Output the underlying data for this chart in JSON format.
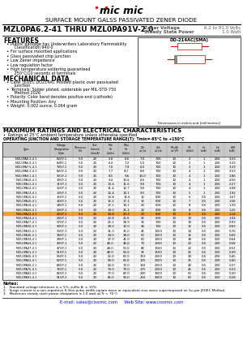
{
  "title": "SURFACE MOUNT GALSS PASSIVATED ZENER DIODE",
  "part_range": "MZL0PA6.2-41 THRU MZL0PA91V-2.0",
  "zener_voltage_label": "Zener Voltage",
  "zener_voltage_value": "6.2 to 91.0 Volts",
  "power_label": "Steady State Power",
  "power_value": "1.0 Watt",
  "package": "DO-214AC(SMA)",
  "bg_color": "#ffffff",
  "features_title": "FEATURES",
  "features": [
    "Plastic package has Underwriters Laboratory Flammability\n   Classification 94V-0",
    "For surface mounted applications",
    "Glass passivated chip junction",
    "Low Zener impedance",
    "Low regulation factor",
    "High temperature soldering guaranteed\n   250°C/10 seconds at terminals"
  ],
  "mech_title": "MECHANICAL DATA",
  "mech": [
    "Case: JEDEC DO214AC molded plastic over passivated\n   junction",
    "Terminals: Solder plated, solderable per MIL-STD-750\n   Method 2026",
    "Polarity: Color band denotes positive end (cathode)",
    "Mounting Position: Any",
    "Weight: 0.002 ounce, 0.064 gram"
  ],
  "ratings_title": "MAXIMUM RATINGS AND ELECTRICAL CHARACTERISTICS",
  "ratings_note": "•  Ratings at 25°C ambient temperature unless otherwise specified",
  "temp_range": "OPERATING JUNCTION AND STORAGE TEMPERATURE RANGE(T): Tmin=-65°C to +150°C",
  "col_headers": [
    "Type",
    "Voltage\nDesignation\nCode",
    "Tolerance\n(%)",
    "Test\nCurrent\nIzt(mA)",
    "Min\nVz\n(Volts)",
    "Max\nVz\n(Volts)",
    "Zzt\nat Izt",
    "Zzk\nat Izk",
    "IR(uA)\nat VR",
    "VR\n(Volts)",
    "Izt\n(mA)",
    "Izk\n(mA)",
    "ISM\n(mA)"
  ],
  "col_group_headers": [
    [
      "",
      0,
      4
    ],
    [
      "Zener Voltage",
      4,
      2
    ],
    [
      "Zener Impedance",
      6,
      2
    ],
    [
      "Leakage\nCurrent",
      8,
      2
    ],
    [
      "",
      10,
      3
    ]
  ],
  "table_data": [
    [
      "MZL0PA6.2-4 1",
      "6V2Y-1",
      "5.0",
      "20",
      "5.8",
      "6.6",
      "7.0",
      "700",
      "10",
      "2",
      "1",
      "200",
      "3.33"
    ],
    [
      "MZL0PA6.8-4 1",
      "6V8Y-1",
      "5.0",
      "20",
      "6.4",
      "7.2",
      "5.0",
      "700",
      "10",
      "2",
      "1",
      "200",
      "3.33"
    ],
    [
      "MZL0PA7.5-4 1",
      "7V5Y-1",
      "5.0",
      "20",
      "7.0",
      "7.9",
      "6.0",
      "700",
      "10",
      "2",
      "1",
      "200",
      "3.33"
    ],
    [
      "MZL0PA8.2-4 1",
      "8V2Y-1",
      "5.0",
      "20",
      "7.7",
      "8.7",
      "8.0",
      "700",
      "10",
      "4",
      "1",
      "200",
      "3.33"
    ],
    [
      "MZL0PA9.1-4 1",
      "9V1Y-1",
      "5.0",
      "20",
      "8.5",
      "9.6",
      "10.0",
      "700",
      "10",
      "4",
      "1",
      "200",
      "2.86"
    ],
    [
      "MZL0PA10-4 1",
      "10VY-1",
      "5.0",
      "20",
      "9.4",
      "10.6",
      "8.5",
      "700",
      "10",
      "4",
      "1",
      "200",
      "2.50"
    ],
    [
      "MZL0PA11-4 1",
      "11VY-1",
      "5.0",
      "20",
      "10.4",
      "11.6",
      "9.0",
      "700",
      "10",
      "4",
      "1",
      "200",
      "2.27"
    ],
    [
      "MZL0PA12-4 1",
      "12VY-1",
      "5.0",
      "20",
      "11.4",
      "12.7",
      "9.0",
      "700",
      "10",
      "4",
      "1",
      "200",
      "2.08"
    ],
    [
      "MZL0PA13-4 1",
      "13VY-1",
      "5.0",
      "20",
      "12.4",
      "14.1",
      "9.5",
      "700",
      "10",
      "5",
      "1",
      "200",
      "1.92"
    ],
    [
      "MZL0PA15-4 1",
      "15VY-1",
      "5.0",
      "20",
      "13.8",
      "15.6",
      "12",
      "600",
      "10",
      "6",
      "0.5",
      "200",
      "1.67"
    ],
    [
      "MZL0PA16-4 1",
      "16VY-1",
      "5.0",
      "20",
      "15.3",
      "17.1",
      "15",
      "600",
      "10",
      "7",
      "0.5",
      "200",
      "1.56"
    ],
    [
      "MZL0PA18-4 1",
      "18VY-1",
      "5.0",
      "20",
      "17.1",
      "19.1",
      "20",
      "600",
      "10",
      "8",
      "0.5",
      "200",
      "1.39"
    ],
    [
      "MZL0PA20-4 1",
      "20VY-1",
      "5.0",
      "20",
      "19.0",
      "21.2",
      "22",
      "600",
      "10",
      "8",
      "0.5",
      "200",
      "1.25"
    ],
    [
      "MZL0PA22-4 1",
      "22VY-1",
      "5.0",
      "20",
      "20.8",
      "23.3",
      "23",
      "600",
      "10",
      "8",
      "0.5",
      "200",
      "1.14"
    ],
    [
      "MZL0PA24-4 1",
      "24VY-1",
      "5.0",
      "20",
      "22.8",
      "25.6",
      "25",
      "600",
      "10",
      "10",
      "0.5",
      "200",
      "1.04"
    ],
    [
      "MZL0PA27-4 1",
      "27VY-1",
      "5.0",
      "20",
      "25.1",
      "28.9",
      "35",
      "700",
      "10",
      "10",
      "0.5",
      "200",
      "0.93"
    ],
    [
      "MZL0PA30-4 1",
      "30VY-1",
      "5.0",
      "20",
      "28.0",
      "32.0",
      "40",
      "700",
      "10",
      "12",
      "0.5",
      "200",
      "0.83"
    ],
    [
      "MZL0PA33-4 1",
      "33VY-1",
      "5.0",
      "20",
      "31.0",
      "35.0",
      "45",
      "1000",
      "10",
      "14",
      "0.5",
      "200",
      "0.76"
    ],
    [
      "MZL0PA36-4 1",
      "36VY-1",
      "5.0",
      "20",
      "34.0",
      "38.0",
      "50",
      "1000",
      "10",
      "16",
      "0.5",
      "200",
      "0.69"
    ],
    [
      "MZL0PA39-4 1",
      "39VY-1",
      "5.0",
      "20",
      "37.0",
      "41.0",
      "60",
      "1000",
      "10",
      "18",
      "0.5",
      "200",
      "0.64"
    ],
    [
      "MZL0PA43-4 1",
      "43VY-1",
      "5.0",
      "20",
      "40.0",
      "46.0",
      "70",
      "1500",
      "10",
      "20",
      "0.5",
      "200",
      "0.58"
    ],
    [
      "MZL0PA47-4 1",
      "47VY-1",
      "5.0",
      "20",
      "44.0",
      "50.0",
      "80",
      "1500",
      "10",
      "22",
      "0.5",
      "200",
      "0.53"
    ],
    [
      "MZL0PA51-4 1",
      "51VY-1",
      "5.0",
      "20",
      "48.0",
      "54.0",
      "95",
      "1500",
      "10",
      "25",
      "0.5",
      "200",
      "0.49"
    ],
    [
      "MZL0PA56-4 1",
      "56VY-1",
      "5.0",
      "20",
      "52.0",
      "60.0",
      "110",
      "2000",
      "10",
      "30",
      "0.5",
      "200",
      "0.45"
    ],
    [
      "MZL0PA62-4 1",
      "62VY-1",
      "5.0",
      "20",
      "58.0",
      "66.0",
      "125",
      "2000",
      "10",
      "35",
      "0.5",
      "200",
      "0.40"
    ],
    [
      "MZL0PA68-4 1",
      "68VY-1",
      "5.0",
      "20",
      "64.0",
      "72.0",
      "150",
      "2000",
      "10",
      "40",
      "0.5",
      "200",
      "0.37"
    ],
    [
      "MZL0PA75-4 1",
      "75VY-1",
      "5.0",
      "20",
      "70.0",
      "79.0",
      "175",
      "2000",
      "10",
      "45",
      "0.5",
      "200",
      "0.33"
    ],
    [
      "MZL0PA82-4 1",
      "82VY-1",
      "5.0",
      "20",
      "77.0",
      "87.0",
      "200",
      "3000",
      "10",
      "50",
      "0.5",
      "200",
      "0.30"
    ],
    [
      "MZL0PA91-4 1",
      "91VY-1",
      "5.0",
      "20",
      "85.0",
      "96.0",
      "250",
      "3000",
      "10",
      "60",
      "0.5",
      "200",
      "0.28"
    ]
  ],
  "orange_highlight_row": 13,
  "notes": [
    "1.   Standard voltage tolerance is ± 5%, suffix A: ± 10%",
    "2.   Surge current is a non-repetitive 8.3ms pulse width square wave or equivalent sine wave superimposed on 1ω per JEDEC Method",
    "3.   Maximum steady state power dissipation is 1.0 watt at Tr = 75°C"
  ],
  "footer_email": "E-mail: sales@cissmic.com",
  "footer_web": "Web Site: www.cissmic.com",
  "col_widths_rel": [
    42,
    20,
    13,
    13,
    14,
    14,
    14,
    14,
    14,
    13,
    12,
    12,
    14
  ]
}
